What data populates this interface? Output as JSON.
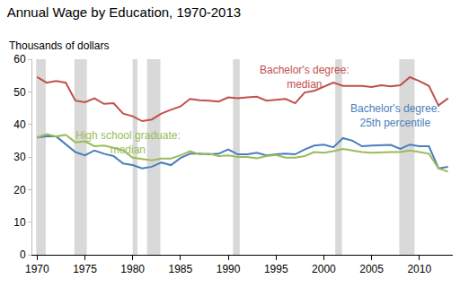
{
  "chart_data": {
    "type": "line",
    "title": "Annual Wage by Education, 1970-2013",
    "subtitle": "Thousands of dollars",
    "x": [
      1970,
      1971,
      1972,
      1973,
      1974,
      1975,
      1976,
      1977,
      1978,
      1979,
      1980,
      1981,
      1982,
      1983,
      1984,
      1985,
      1986,
      1987,
      1988,
      1989,
      1990,
      1991,
      1992,
      1993,
      1994,
      1995,
      1996,
      1997,
      1998,
      1999,
      2000,
      2001,
      2002,
      2003,
      2004,
      2005,
      2006,
      2007,
      2008,
      2009,
      2010,
      2011,
      2012,
      2013
    ],
    "series": [
      {
        "name": "Bachelor's degree: median",
        "color": "#c0504d",
        "values": [
          54.5,
          52.8,
          53.3,
          52.8,
          47.3,
          46.8,
          48.0,
          46.3,
          46.5,
          43.3,
          42.5,
          41.0,
          41.5,
          43.3,
          44.5,
          45.5,
          47.8,
          47.4,
          47.3,
          47.0,
          48.3,
          48.0,
          48.3,
          48.5,
          47.3,
          47.6,
          47.8,
          46.5,
          49.8,
          50.3,
          51.5,
          52.8,
          51.8,
          51.8,
          51.8,
          51.5,
          52.0,
          51.7,
          52.0,
          54.5,
          53.3,
          51.8,
          45.8,
          48.0
        ]
      },
      {
        "name": "Bachelor's degree: 25th percentile",
        "color": "#4a7ebb",
        "values": [
          36.0,
          36.3,
          36.3,
          34.0,
          31.5,
          30.5,
          32.0,
          31.0,
          30.3,
          28.0,
          27.5,
          26.5,
          27.0,
          28.3,
          27.5,
          29.7,
          31.0,
          31.0,
          30.8,
          31.0,
          32.3,
          30.8,
          30.8,
          31.3,
          30.5,
          30.8,
          31.0,
          30.8,
          32.3,
          33.5,
          33.8,
          33.0,
          35.8,
          35.0,
          33.3,
          33.5,
          33.5,
          33.7,
          32.5,
          33.8,
          33.3,
          33.3,
          26.5,
          27.0
        ]
      },
      {
        "name": "High school graduate: median",
        "color": "#9bbb59",
        "values": [
          36.0,
          37.0,
          36.3,
          36.8,
          34.5,
          34.8,
          33.3,
          33.5,
          32.8,
          32.0,
          29.8,
          29.5,
          29.0,
          29.5,
          29.5,
          30.5,
          31.8,
          30.8,
          31.0,
          30.3,
          30.5,
          30.0,
          30.0,
          29.6,
          30.3,
          30.6,
          29.8,
          29.8,
          30.3,
          31.5,
          31.3,
          31.8,
          32.5,
          32.0,
          31.5,
          31.3,
          31.5,
          31.5,
          31.5,
          32.0,
          31.5,
          31.0,
          26.5,
          25.5
        ]
      }
    ],
    "recessions": [
      [
        1969.9,
        1970.9
      ],
      [
        1973.9,
        1975.2
      ],
      [
        1980.0,
        1980.5
      ],
      [
        1981.5,
        1982.9
      ],
      [
        1990.5,
        1991.2
      ],
      [
        2001.2,
        2001.9
      ],
      [
        2007.9,
        2009.5
      ]
    ],
    "xlim": [
      1969.5,
      2013.5
    ],
    "xticks": [
      1970,
      1975,
      1980,
      1985,
      1990,
      1995,
      2000,
      2005,
      2010
    ],
    "ylim": [
      0,
      60
    ],
    "yticks": [
      0,
      10,
      20,
      30,
      40,
      50,
      60
    ],
    "grid": false
  }
}
